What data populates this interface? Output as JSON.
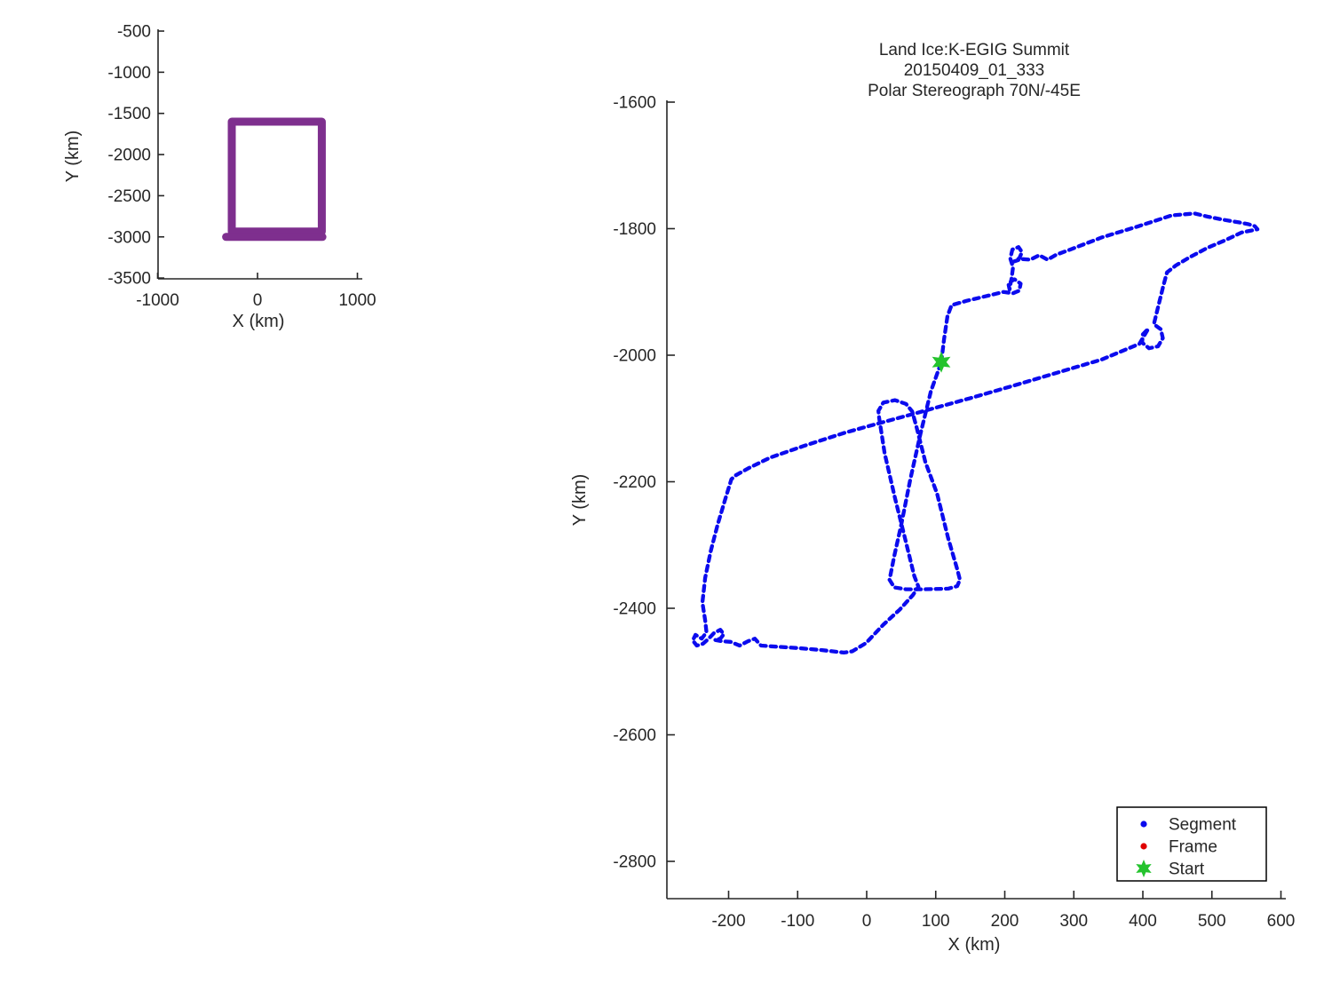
{
  "figure": {
    "background": "#ffffff",
    "text_color": "#262626",
    "axis_color": "#262626"
  },
  "legend": {
    "items": [
      {
        "label": "Segment",
        "marker": "dot",
        "color": "#0b0bee"
      },
      {
        "label": "Frame",
        "marker": "dot",
        "color": "#e00000"
      },
      {
        "label": "Start",
        "marker": "star",
        "color": "#24c32d"
      }
    ]
  },
  "chart_data": [
    {
      "type": "line",
      "name": "overview-extent-plot",
      "title": "",
      "xlabel": "X (km)",
      "ylabel": "Y (km)",
      "xlim": [
        -1200,
        1050
      ],
      "ylim": [
        -3560,
        -440
      ],
      "x_ticks": [
        -1000,
        0,
        1000
      ],
      "y_ticks": [
        -500,
        -1000,
        -1500,
        -2000,
        -2500,
        -3000,
        -3500
      ],
      "grid": false,
      "series": [
        {
          "name": "flight-extent-box",
          "color": "#7e2f8e",
          "width": 9,
          "dashed": false,
          "points": [
            [
              -258,
              -2935
            ],
            [
              -258,
              -1600
            ],
            [
              644,
              -1600
            ],
            [
              644,
              -2935
            ],
            [
              -258,
              -2935
            ]
          ]
        },
        {
          "name": "flight-extent-box-bottom",
          "color": "#7e2f8e",
          "width": 9,
          "dashed": false,
          "points": [
            [
              -315,
              -3000
            ],
            [
              650,
              -3000
            ]
          ]
        }
      ]
    },
    {
      "type": "line",
      "name": "flight-track-plot",
      "title_lines": [
        "Land Ice:K-EGIG Summit",
        "20150409_01_333",
        "Polar Stereograph 70N/-45E"
      ],
      "xlabel": "X (km)",
      "ylabel": "Y (km)",
      "xlim": [
        -290,
        607
      ],
      "ylim": [
        -2860,
        -1597
      ],
      "x_ticks": [
        -200,
        -100,
        0,
        100,
        200,
        300,
        400,
        500,
        600
      ],
      "y_ticks": [
        -1600,
        -1800,
        -2000,
        -2200,
        -2400,
        -2600,
        -2800
      ],
      "grid": false,
      "legend_position": "lower right",
      "series": [
        {
          "name": "Segment",
          "color": "#0b0bee",
          "width": 4.3,
          "dashed": true,
          "points": [
            [
              108,
              -2011
            ],
            [
              112,
              -1975
            ],
            [
              117,
              -1938
            ],
            [
              123,
              -1921
            ],
            [
              145,
              -1914
            ],
            [
              172,
              -1907
            ],
            [
              198,
              -1900
            ],
            [
              212,
              -1902
            ],
            [
              221,
              -1898
            ],
            [
              223,
              -1887
            ],
            [
              214,
              -1880
            ],
            [
              205,
              -1886
            ],
            [
              207,
              -1896
            ],
            [
              210,
              -1877
            ],
            [
              212,
              -1861
            ],
            [
              208,
              -1847
            ],
            [
              211,
              -1833
            ],
            [
              220,
              -1829
            ],
            [
              225,
              -1837
            ],
            [
              221,
              -1847
            ],
            [
              213,
              -1852
            ],
            [
              224,
              -1848
            ],
            [
              237,
              -1849
            ],
            [
              250,
              -1842
            ],
            [
              262,
              -1849
            ],
            [
              275,
              -1841
            ],
            [
              295,
              -1833
            ],
            [
              340,
              -1814
            ],
            [
              391,
              -1797
            ],
            [
              442,
              -1779
            ],
            [
              475,
              -1776
            ],
            [
              494,
              -1781
            ],
            [
              517,
              -1786
            ],
            [
              539,
              -1790
            ],
            [
              553,
              -1793
            ],
            [
              562,
              -1796
            ],
            [
              566,
              -1801
            ],
            [
              557,
              -1803
            ],
            [
              543,
              -1806
            ],
            [
              520,
              -1818
            ],
            [
              494,
              -1830
            ],
            [
              468,
              -1845
            ],
            [
              448,
              -1858
            ],
            [
              435,
              -1869
            ],
            [
              430,
              -1889
            ],
            [
              422,
              -1924
            ],
            [
              416,
              -1951
            ],
            [
              426,
              -1959
            ],
            [
              429,
              -1973
            ],
            [
              422,
              -1986
            ],
            [
              409,
              -1989
            ],
            [
              399,
              -1980
            ],
            [
              400,
              -1967
            ],
            [
              408,
              -1958
            ],
            [
              395,
              -1982
            ],
            [
              340,
              -2007
            ],
            [
              275,
              -2028
            ],
            [
              210,
              -2049
            ],
            [
              150,
              -2068
            ],
            [
              90,
              -2086
            ],
            [
              30,
              -2104
            ],
            [
              -30,
              -2122
            ],
            [
              -90,
              -2143
            ],
            [
              -140,
              -2162
            ],
            [
              -170,
              -2178
            ],
            [
              -190,
              -2190
            ],
            [
              -196,
              -2196
            ],
            [
              -205,
              -2228
            ],
            [
              -216,
              -2268
            ],
            [
              -226,
              -2310
            ],
            [
              -234,
              -2352
            ],
            [
              -238,
              -2391
            ],
            [
              -234,
              -2419
            ],
            [
              -232,
              -2438
            ],
            [
              -239,
              -2448
            ],
            [
              -248,
              -2442
            ],
            [
              -252,
              -2451
            ],
            [
              -246,
              -2459
            ],
            [
              -237,
              -2456
            ],
            [
              -229,
              -2448
            ],
            [
              -221,
              -2439
            ],
            [
              -212,
              -2434
            ],
            [
              -207,
              -2441
            ],
            [
              -212,
              -2448
            ],
            [
              -220,
              -2450
            ],
            [
              -210,
              -2452
            ],
            [
              -197,
              -2453
            ],
            [
              -184,
              -2459
            ],
            [
              -172,
              -2452
            ],
            [
              -162,
              -2448
            ],
            [
              -153,
              -2459
            ],
            [
              -139,
              -2460
            ],
            [
              -98,
              -2463
            ],
            [
              -66,
              -2466
            ],
            [
              -33,
              -2470
            ],
            [
              -21,
              -2468
            ],
            [
              -1,
              -2455
            ],
            [
              24,
              -2426
            ],
            [
              48,
              -2402
            ],
            [
              67,
              -2379
            ],
            [
              75,
              -2366
            ],
            [
              69,
              -2349
            ],
            [
              57,
              -2296
            ],
            [
              41,
              -2226
            ],
            [
              26,
              -2155
            ],
            [
              18,
              -2099
            ],
            [
              17,
              -2088
            ],
            [
              24,
              -2075
            ],
            [
              41,
              -2071
            ],
            [
              57,
              -2077
            ],
            [
              66,
              -2089
            ],
            [
              72,
              -2113
            ],
            [
              85,
              -2169
            ],
            [
              102,
              -2219
            ],
            [
              118,
              -2289
            ],
            [
              131,
              -2338
            ],
            [
              135,
              -2355
            ],
            [
              131,
              -2365
            ],
            [
              118,
              -2369
            ],
            [
              82,
              -2370
            ],
            [
              57,
              -2370
            ],
            [
              40,
              -2367
            ],
            [
              33,
              -2355
            ],
            [
              40,
              -2317
            ],
            [
              50,
              -2268
            ],
            [
              63,
              -2197
            ],
            [
              78,
              -2124
            ],
            [
              93,
              -2057
            ],
            [
              108,
              -2011
            ]
          ]
        },
        {
          "name": "Start",
          "color": "#24c32d",
          "marker": "star",
          "width": 0,
          "dashed": false,
          "points": [
            [
              108,
              -2011
            ]
          ]
        }
      ]
    }
  ]
}
